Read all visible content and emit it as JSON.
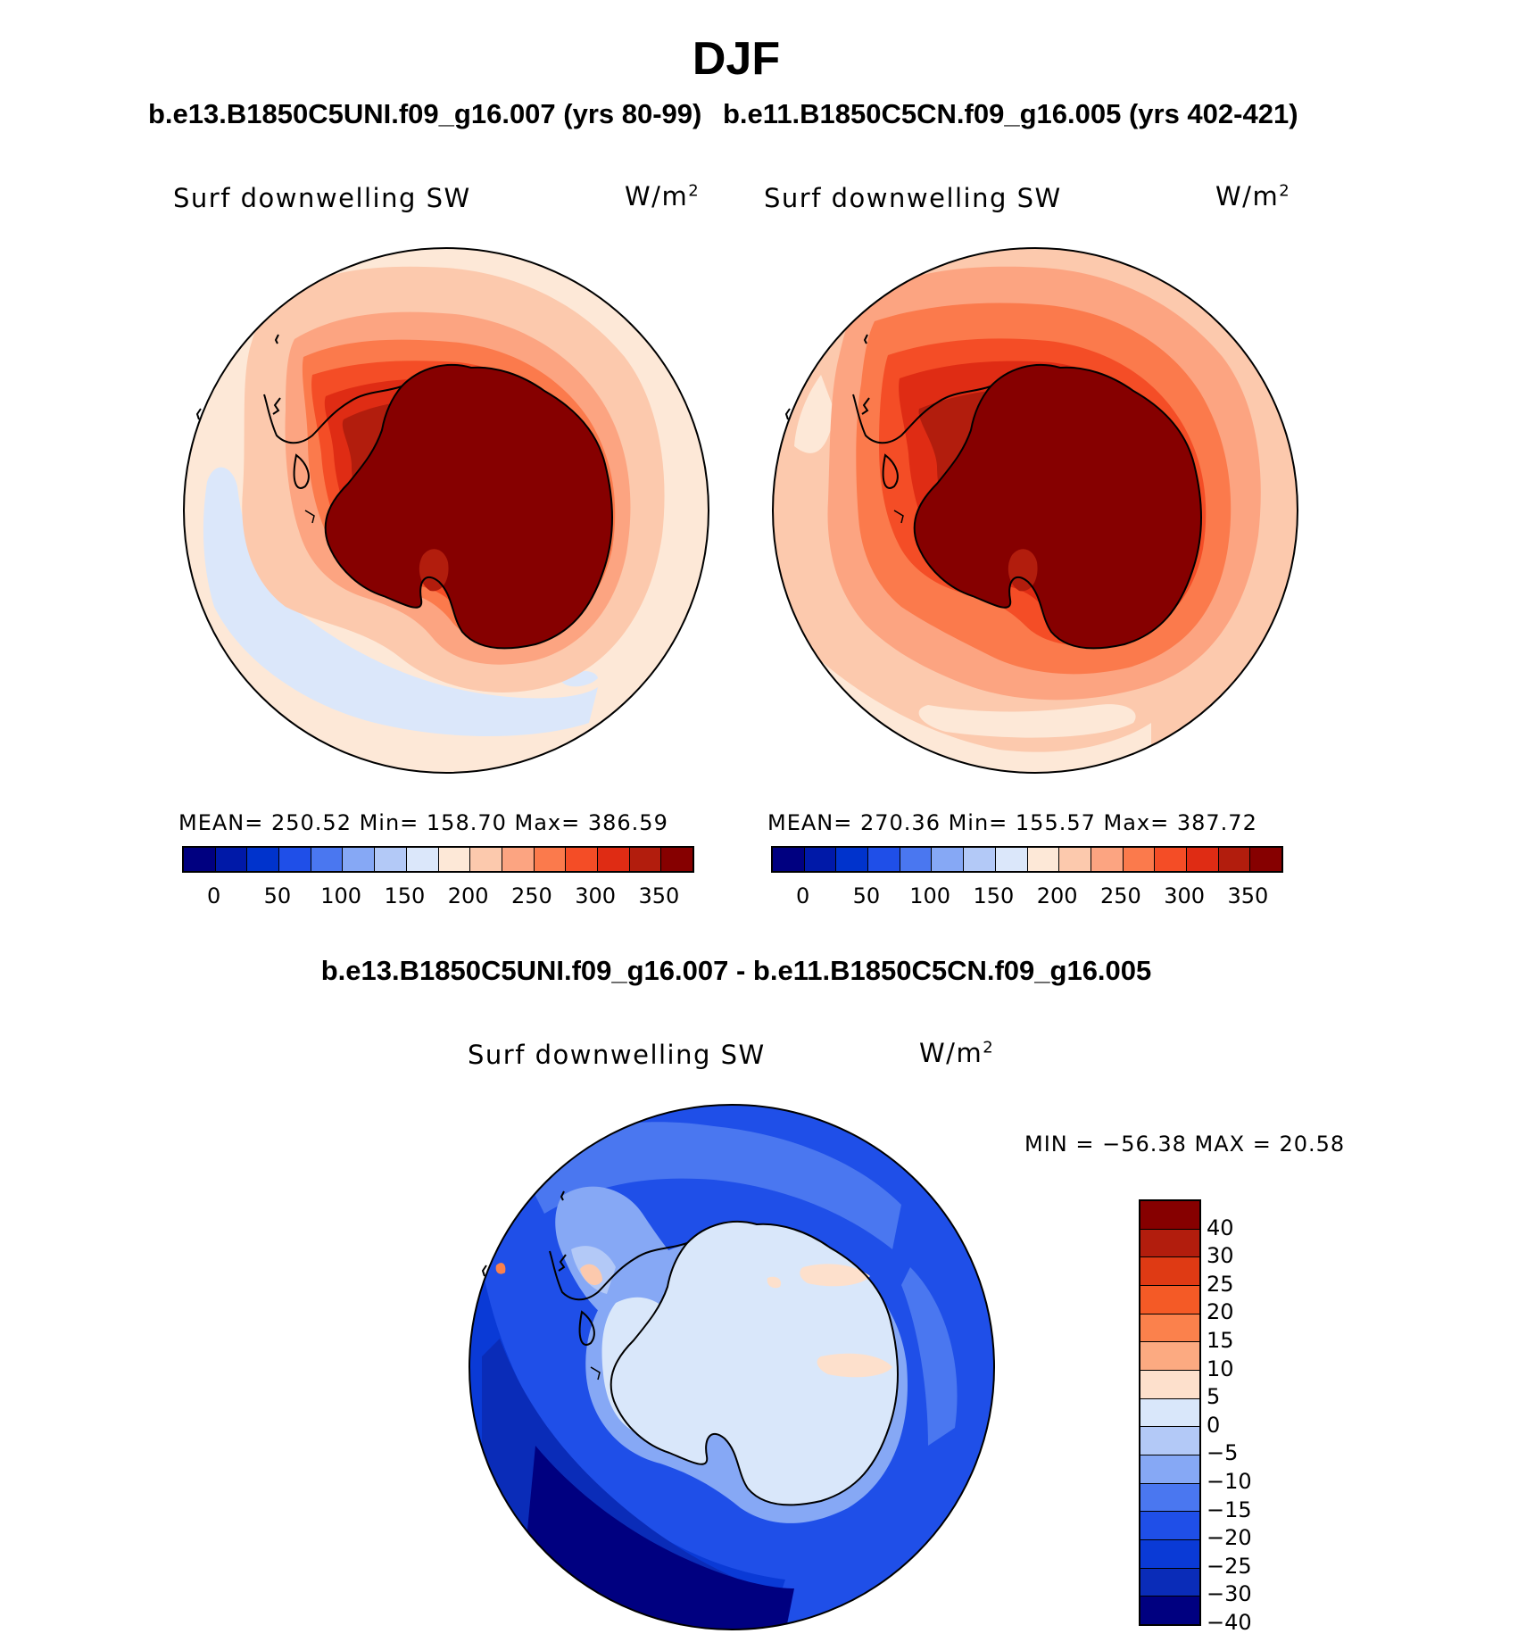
{
  "figure": {
    "season": "DJF",
    "case_a_label": "b.e13.B1850C5UNI.f09_g16.007 (yrs 80-99)",
    "case_b_label": "b.e11.B1850C5CN.f09_g16.005 (yrs 402-421)",
    "diff_label": "b.e13.B1850C5UNI.f09_g16.007 - b.e11.B1850C5CN.f09_g16.005"
  },
  "panels": {
    "left": {
      "variable": "Surf downwelling SW",
      "units_base": "W/m",
      "units_exp": "2",
      "stats": "MEAN=  250.52    Min=  158.70    Max=  386.59"
    },
    "right": {
      "variable": "Surf downwelling SW",
      "units_base": "W/m",
      "units_exp": "2",
      "stats": "MEAN=  270.36    Min=  155.57    Max=  387.72"
    },
    "diff": {
      "variable": "Surf downwelling SW",
      "units_base": "W/m",
      "units_exp": "2",
      "stats": "MIN  =  −56.38  MAX  =    20.58"
    }
  },
  "colorbars": {
    "absolute": {
      "colors": [
        "#000080",
        "#0019a8",
        "#0033cc",
        "#1f4fe8",
        "#4a77f0",
        "#86a8f5",
        "#b3c9f7",
        "#dbe7fa",
        "#fde8d7",
        "#fcc9ad",
        "#fca481",
        "#fb7a4c",
        "#f44d26",
        "#df2c14",
        "#b21d0d",
        "#860000"
      ],
      "tick_labels": [
        "0",
        "50",
        "100",
        "150",
        "200",
        "250",
        "300",
        "350"
      ]
    },
    "difference": {
      "colors": [
        "#860000",
        "#b21d0d",
        "#df3a14",
        "#f45a26",
        "#fb814c",
        "#fcaa81",
        "#fde0cc",
        "#d9e7fa",
        "#b3c9f7",
        "#86a8f5",
        "#4a77f0",
        "#1f4fe8",
        "#0a3ad6",
        "#0a2cb8",
        "#000080"
      ],
      "tick_labels": [
        "40",
        "30",
        "25",
        "20",
        "15",
        "10",
        "5",
        "0",
        "−5",
        "−10",
        "−15",
        "−20",
        "−25",
        "−30",
        "−40"
      ]
    }
  }
}
